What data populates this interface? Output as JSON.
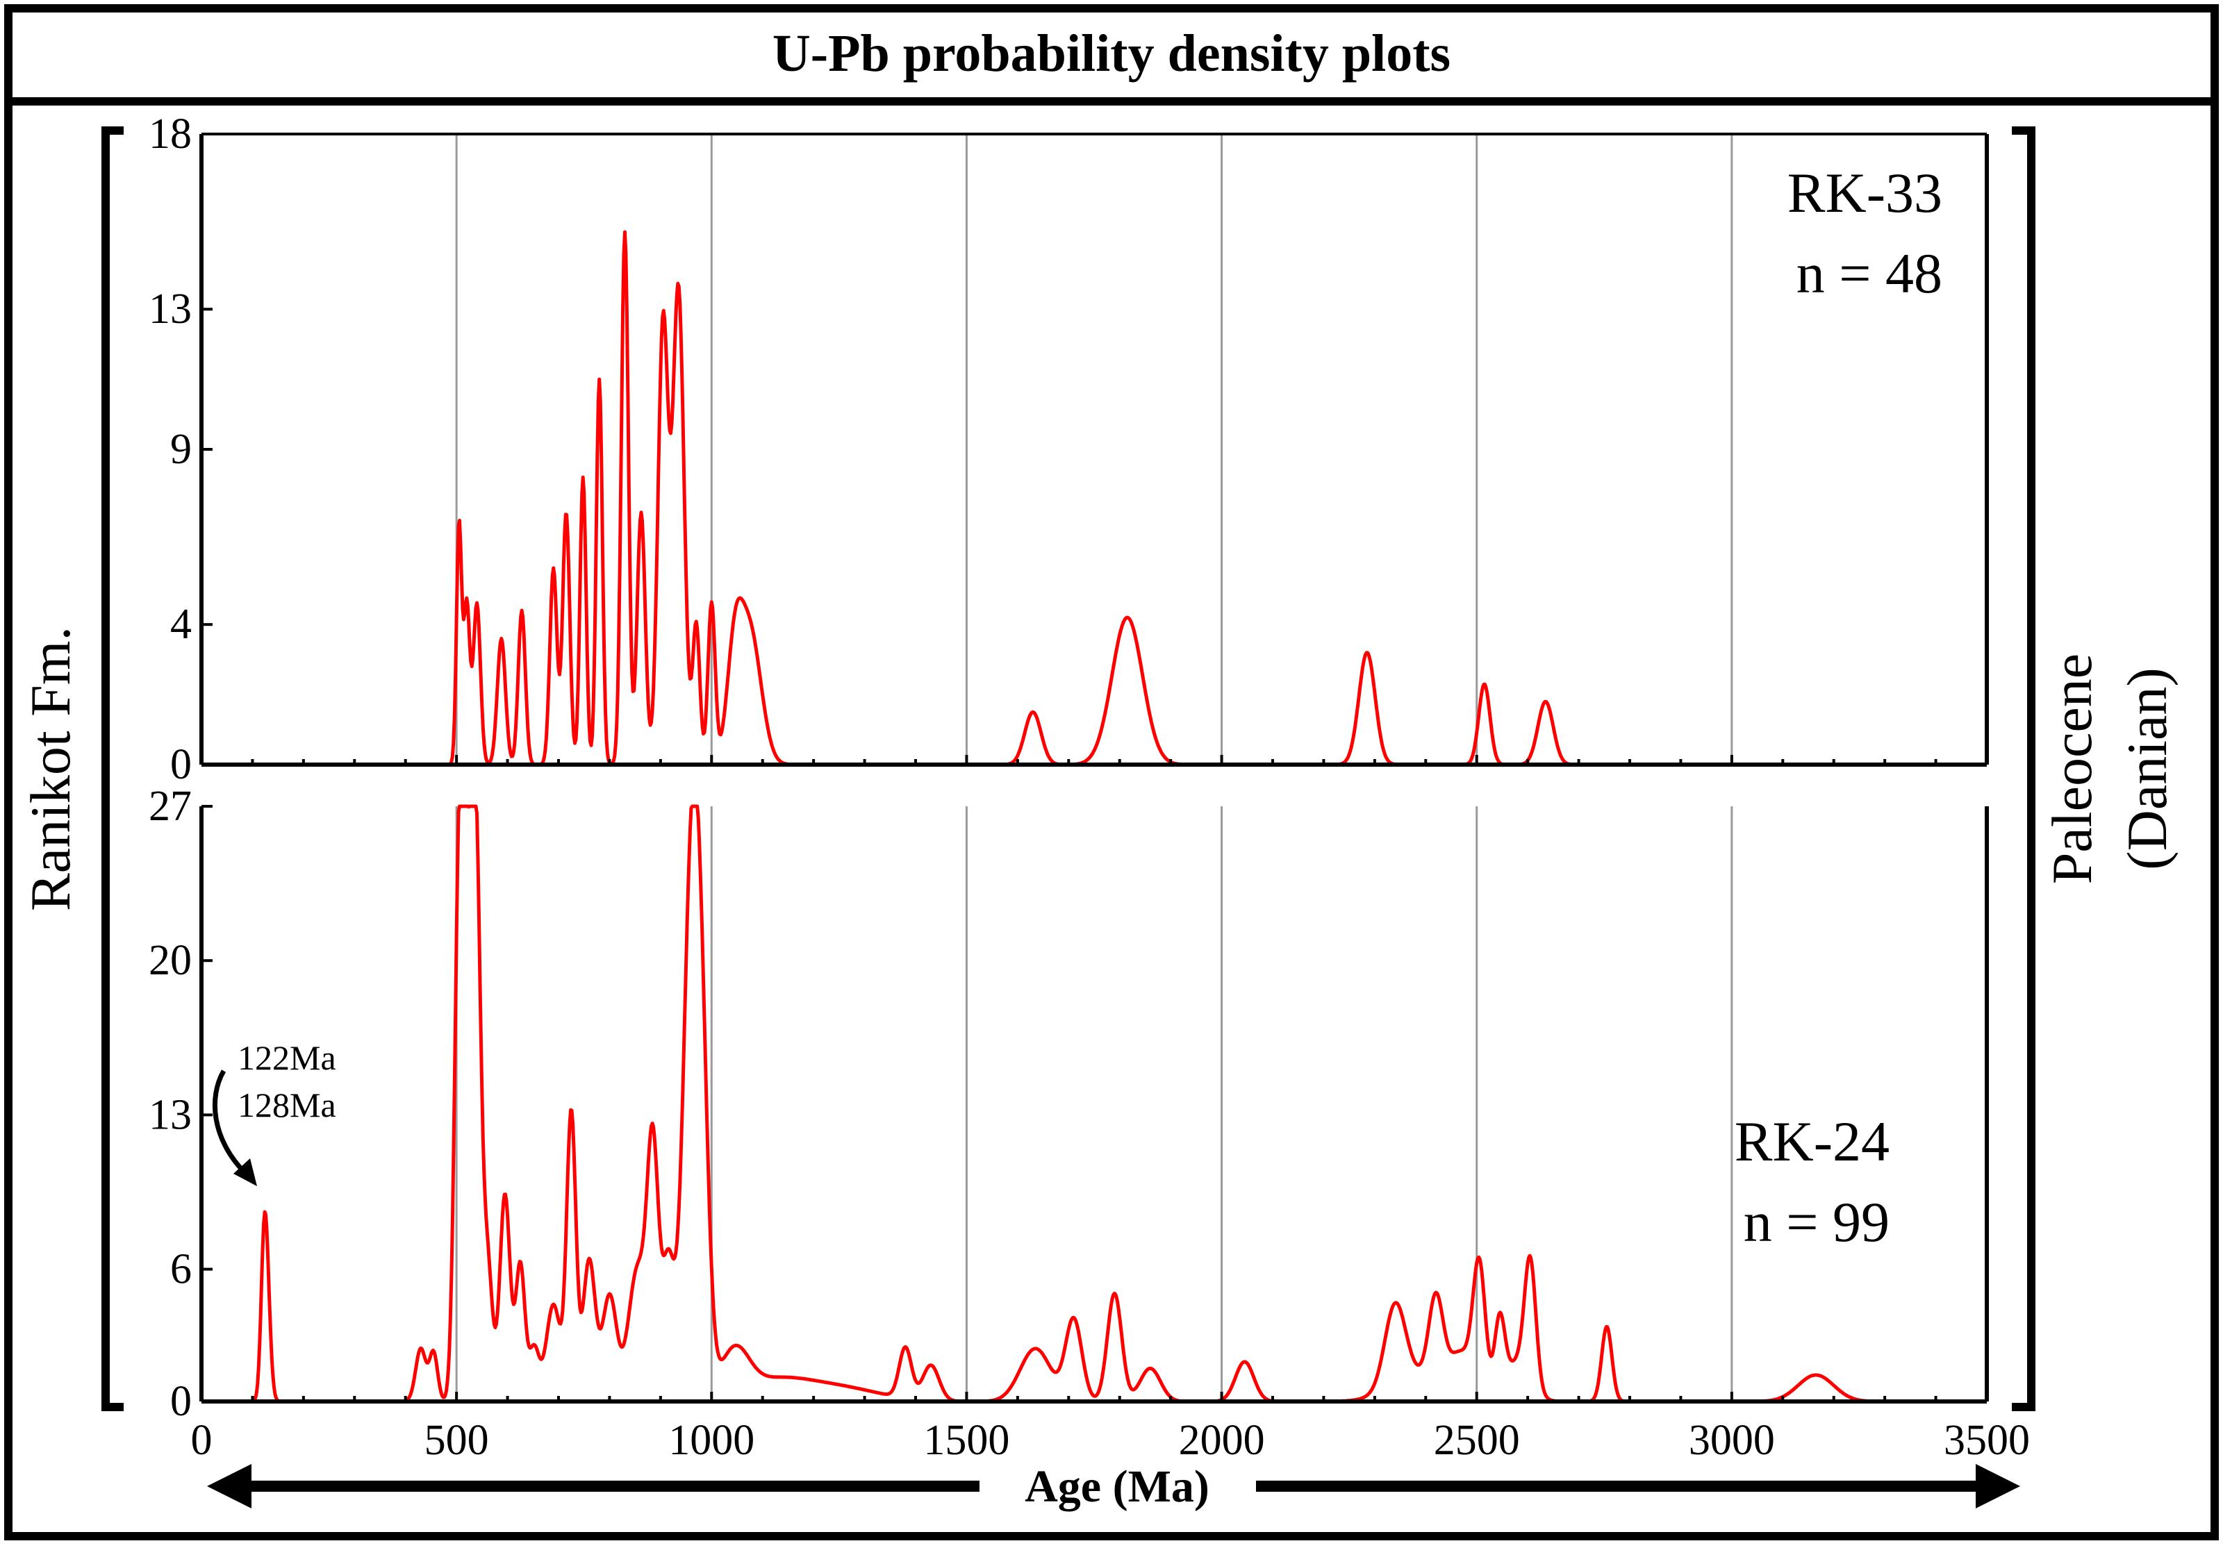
{
  "title": "U-Pb probability density plots",
  "left_label": "Ranikot Fm.",
  "right_label_line1": "Paleocene",
  "right_label_line2": "(Danian)",
  "x_axis_label": "Age (Ma)",
  "annotation": {
    "line1": "122Ma",
    "line2": "128Ma"
  },
  "colors": {
    "curve": "#ff0000",
    "grid": "#9a9a9a",
    "frame": "#000000"
  },
  "chart_data": [
    {
      "type": "line",
      "sample": "RK-33",
      "n_label": "n = 48",
      "xlim": [
        0,
        3500
      ],
      "ylim": [
        0,
        18
      ],
      "x_ticks": [
        0,
        500,
        1000,
        1500,
        2000,
        2500,
        3000,
        3500
      ],
      "y_ticks": [
        0,
        4,
        9,
        13,
        18
      ],
      "xlabel": "Age (Ma)",
      "ylabel": "",
      "grid": "vertical",
      "peaks": [
        [
          505,
          6.8,
          5
        ],
        [
          520,
          4.6,
          6
        ],
        [
          540,
          4.6,
          7
        ],
        [
          588,
          3.6,
          8
        ],
        [
          628,
          4.4,
          7
        ],
        [
          690,
          5.6,
          7
        ],
        [
          715,
          7.2,
          7
        ],
        [
          748,
          8.2,
          6
        ],
        [
          780,
          11.0,
          6
        ],
        [
          830,
          15.2,
          7
        ],
        [
          862,
          7.2,
          8
        ],
        [
          905,
          12.6,
          10
        ],
        [
          935,
          13.6,
          11
        ],
        [
          970,
          4.0,
          7
        ],
        [
          1000,
          4.6,
          7
        ],
        [
          1045,
          2.8,
          15
        ],
        [
          1075,
          3.8,
          22
        ],
        [
          1630,
          1.5,
          16
        ],
        [
          1815,
          4.2,
          30
        ],
        [
          2285,
          3.2,
          16
        ],
        [
          2515,
          2.3,
          11
        ],
        [
          2635,
          1.8,
          15
        ]
      ]
    },
    {
      "type": "line",
      "sample": "RK-24",
      "n_label": "n = 99",
      "xlim": [
        0,
        3500
      ],
      "ylim": [
        0,
        27
      ],
      "x_ticks": [
        0,
        500,
        1000,
        1500,
        2000,
        2500,
        3000,
        3500
      ],
      "y_ticks": [
        0,
        6,
        13,
        20,
        27
      ],
      "xlabel": "Age (Ma)",
      "ylabel": "",
      "grid": "vertical",
      "peaks": [
        [
          122,
          4.6,
          6
        ],
        [
          128,
          5.0,
          7
        ],
        [
          430,
          2.4,
          10
        ],
        [
          455,
          2.2,
          8
        ],
        [
          505,
          21.6,
          9
        ],
        [
          520,
          19.0,
          10
        ],
        [
          538,
          23.8,
          9
        ],
        [
          560,
          6.5,
          10
        ],
        [
          595,
          9.4,
          10
        ],
        [
          625,
          6.2,
          9
        ],
        [
          652,
          2.4,
          10
        ],
        [
          690,
          4.4,
          14
        ],
        [
          725,
          13.0,
          9
        ],
        [
          760,
          6.4,
          12
        ],
        [
          800,
          4.8,
          14
        ],
        [
          855,
          6.0,
          18
        ],
        [
          885,
          10.8,
          11
        ],
        [
          915,
          6.2,
          12
        ],
        [
          960,
          22.5,
          16
        ],
        [
          980,
          12.0,
          14
        ],
        [
          1045,
          2.0,
          28
        ],
        [
          1120,
          0.9,
          70
        ],
        [
          1250,
          0.6,
          80
        ],
        [
          1380,
          2.3,
          12
        ],
        [
          1430,
          1.6,
          16
        ],
        [
          1635,
          2.4,
          30
        ],
        [
          1710,
          3.7,
          16
        ],
        [
          1790,
          4.9,
          14
        ],
        [
          1860,
          1.5,
          20
        ],
        [
          2045,
          1.8,
          18
        ],
        [
          2340,
          3.6,
          20
        ],
        [
          2420,
          3.8,
          14
        ],
        [
          2380,
          1.2,
          50
        ],
        [
          2470,
          2.0,
          25
        ],
        [
          2505,
          5.7,
          12
        ],
        [
          2545,
          3.3,
          10
        ],
        [
          2605,
          5.5,
          11
        ],
        [
          2580,
          1.8,
          25
        ],
        [
          2755,
          3.4,
          10
        ],
        [
          3165,
          1.2,
          35
        ]
      ]
    }
  ]
}
